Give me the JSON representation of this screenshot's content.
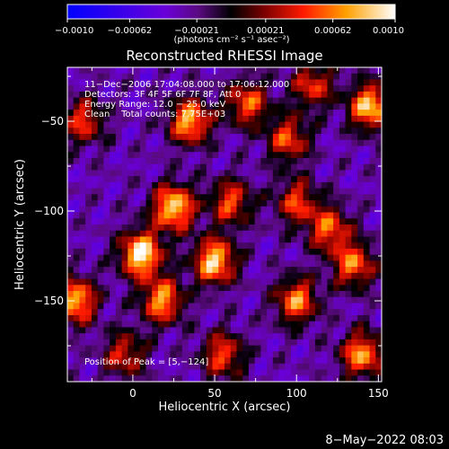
{
  "chart_data": {
    "type": "heatmap",
    "title": "Reconstructed RHESSI Image",
    "xlabel": "Heliocentric X (arcsec)",
    "ylabel": "Heliocentric Y (arcsec)",
    "xlim": [
      -40,
      152
    ],
    "ylim": [
      -195,
      -20
    ],
    "x_ticks": [
      0,
      50,
      100,
      150
    ],
    "y_ticks": [
      -50,
      -100,
      -150
    ],
    "x_tick_labels": [
      "0",
      "50",
      "100",
      "150"
    ],
    "y_tick_labels": [
      "−50",
      "−100",
      "−150"
    ],
    "colorbar": {
      "min": -0.001,
      "max": 0.001,
      "ticks": [
        -0.001,
        -0.00062,
        -0.00021,
        0.00021,
        0.00062,
        0.001
      ],
      "tick_labels": [
        "−0.0010",
        "−0.00062",
        "−0.00021",
        "0.00021",
        "0.00062",
        "0.0010"
      ],
      "units_label": "(photons cm⁻² s⁻¹ asec⁻²)"
    },
    "annotations": [
      "11−Dec−2006 17:04:08.000 to 17:06:12.000",
      "Detectors: 3F 4F 5F 6F 7F 8F, Att 0",
      "Energy Range: 12.0 − 25.0 keV",
      "Clean    Total counts: 7.75E+03",
      "Position of Peak = [5,−124]"
    ],
    "peaks": [
      {
        "x": 5,
        "y": -124,
        "value": 0.001
      },
      {
        "x": 25,
        "y": -98,
        "value": 0.0009
      },
      {
        "x": 50,
        "y": -128,
        "value": 0.00088
      },
      {
        "x": 145,
        "y": -42,
        "value": 0.00085
      },
      {
        "x": 35,
        "y": -50,
        "value": 0.00078
      },
      {
        "x": -35,
        "y": -150,
        "value": 0.0008
      },
      {
        "x": 18,
        "y": -150,
        "value": 0.0007
      },
      {
        "x": 140,
        "y": -180,
        "value": 0.0007
      },
      {
        "x": 100,
        "y": -150,
        "value": 0.00065
      },
      {
        "x": 135,
        "y": -130,
        "value": 0.0006
      },
      {
        "x": 120,
        "y": -110,
        "value": 0.00055
      },
      {
        "x": 70,
        "y": -40,
        "value": 0.00055
      },
      {
        "x": 95,
        "y": -60,
        "value": 0.0005
      },
      {
        "x": 60,
        "y": -95,
        "value": 0.0005
      },
      {
        "x": 55,
        "y": -180,
        "value": 0.0005
      },
      {
        "x": -30,
        "y": -50,
        "value": 0.00045
      },
      {
        "x": 110,
        "y": -30,
        "value": 0.00045
      },
      {
        "x": -5,
        "y": -180,
        "value": 0.0004
      },
      {
        "x": 100,
        "y": -95,
        "value": 0.00045
      }
    ]
  },
  "footer": {
    "timestamp": "8−May−2022 08:03"
  }
}
